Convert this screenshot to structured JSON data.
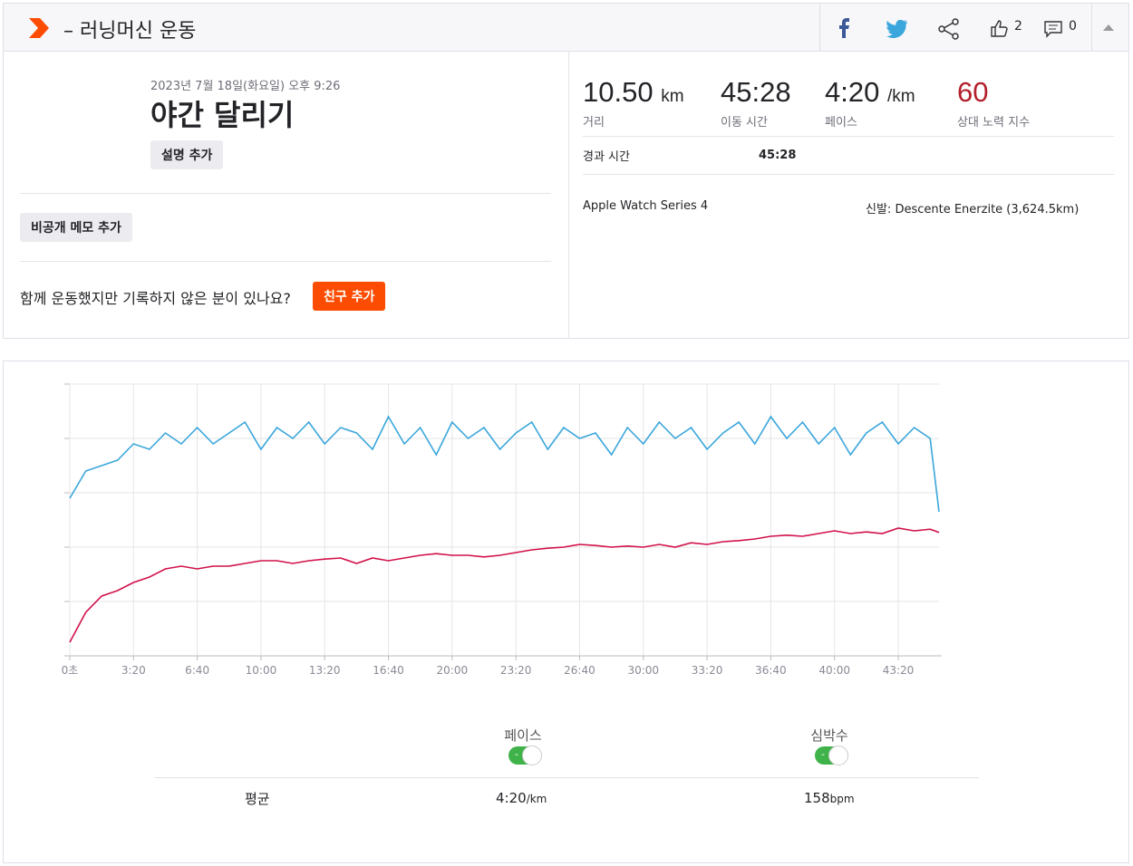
{
  "header": {
    "title": "– 러닝머신 운동",
    "likes": 2,
    "comments": 0
  },
  "activity": {
    "date": "2023년 7월 18일(화요일) 오후 9:26",
    "name": "야간 달리기",
    "add_description": "설명 추가",
    "add_private_note": "비공개 메모 추가",
    "question": "함께 운동했지만 기록하지 않은 분이 있나요?",
    "add_friend": "친구 추가"
  },
  "stats": [
    {
      "value": "10.50",
      "unit": "km",
      "label": "거리"
    },
    {
      "value": "45:28",
      "label": "이동 시간"
    },
    {
      "value": "4:20",
      "unit": "/km",
      "label": "페이스"
    },
    {
      "value": 60,
      "label": "상대 노력 지수"
    }
  ],
  "elapsed": {
    "label": "경과 시간",
    "value": "45:28"
  },
  "device": "Apple Watch Series 4",
  "shoes": {
    "label": "신발:",
    "value": "Descente Enerzite (3,624.5km)"
  },
  "averages": {
    "label": "평균",
    "pace": "4:20",
    "pace_unit": "/km",
    "heart_rate": 158,
    "heart_rate_unit": "bpm"
  },
  "chart_data": {
    "type": "line",
    "x": [
      0,
      50,
      100,
      150,
      200,
      250,
      300,
      350,
      400,
      450,
      500,
      550,
      600,
      650,
      700,
      750,
      800,
      850,
      900,
      950,
      1000,
      1050,
      1100,
      1150,
      1200,
      1250,
      1300,
      1350,
      1400,
      1450,
      1500,
      1550,
      1600,
      1650,
      1700,
      1750,
      1800,
      1850,
      1900,
      1950,
      2000,
      2050,
      2100,
      2150,
      2200,
      2250,
      2300,
      2350,
      2400,
      2450,
      2500,
      2550,
      2600,
      2650,
      2700,
      2728
    ],
    "xlim": [
      0,
      2728
    ],
    "xticks": [
      {
        "value": 0,
        "label": "0초"
      },
      {
        "value": 200,
        "label": "3:20"
      },
      {
        "value": 400,
        "label": "6:40"
      },
      {
        "value": 600,
        "label": "10:00"
      },
      {
        "value": 800,
        "label": "13:20"
      },
      {
        "value": 1000,
        "label": "16:40"
      },
      {
        "value": 1200,
        "label": "20:00"
      },
      {
        "value": 1400,
        "label": "23:20"
      },
      {
        "value": 1600,
        "label": "26:40"
      },
      {
        "value": 1800,
        "label": "30:00"
      },
      {
        "value": 2000,
        "label": "33:20"
      },
      {
        "value": 2200,
        "label": "36:40"
      },
      {
        "value": 2400,
        "label": "40:00"
      },
      {
        "value": 2600,
        "label": "43:20"
      }
    ],
    "ylim": [
      0,
      5
    ],
    "yticks": [
      0,
      1,
      2,
      3,
      4,
      5
    ],
    "grid": true,
    "series": [
      {
        "name": "페이스",
        "color": "#3aa6dc",
        "values": [
          2.9,
          3.4,
          3.5,
          3.6,
          3.9,
          3.8,
          4.1,
          3.9,
          4.2,
          3.9,
          4.1,
          4.3,
          3.8,
          4.2,
          4.0,
          4.3,
          3.9,
          4.2,
          4.1,
          3.8,
          4.4,
          3.9,
          4.2,
          3.7,
          4.3,
          4.0,
          4.2,
          3.8,
          4.1,
          4.3,
          3.8,
          4.2,
          4.0,
          4.1,
          3.7,
          4.2,
          3.9,
          4.3,
          4.0,
          4.2,
          3.8,
          4.1,
          4.3,
          3.9,
          4.4,
          4.0,
          4.3,
          3.9,
          4.2,
          3.7,
          4.1,
          4.3,
          3.9,
          4.2,
          4.0,
          2.65
        ]
      },
      {
        "name": "심박수",
        "color": "#d1104a",
        "values": [
          0.25,
          0.8,
          1.1,
          1.2,
          1.35,
          1.45,
          1.6,
          1.65,
          1.6,
          1.65,
          1.65,
          1.7,
          1.75,
          1.75,
          1.7,
          1.75,
          1.78,
          1.8,
          1.7,
          1.8,
          1.75,
          1.8,
          1.85,
          1.88,
          1.85,
          1.85,
          1.82,
          1.85,
          1.9,
          1.95,
          1.98,
          2.0,
          2.05,
          2.03,
          2.0,
          2.02,
          2.0,
          2.05,
          2.0,
          2.08,
          2.05,
          2.1,
          2.12,
          2.15,
          2.2,
          2.22,
          2.2,
          2.25,
          2.3,
          2.25,
          2.28,
          2.25,
          2.35,
          2.3,
          2.33,
          2.27
        ]
      }
    ]
  }
}
